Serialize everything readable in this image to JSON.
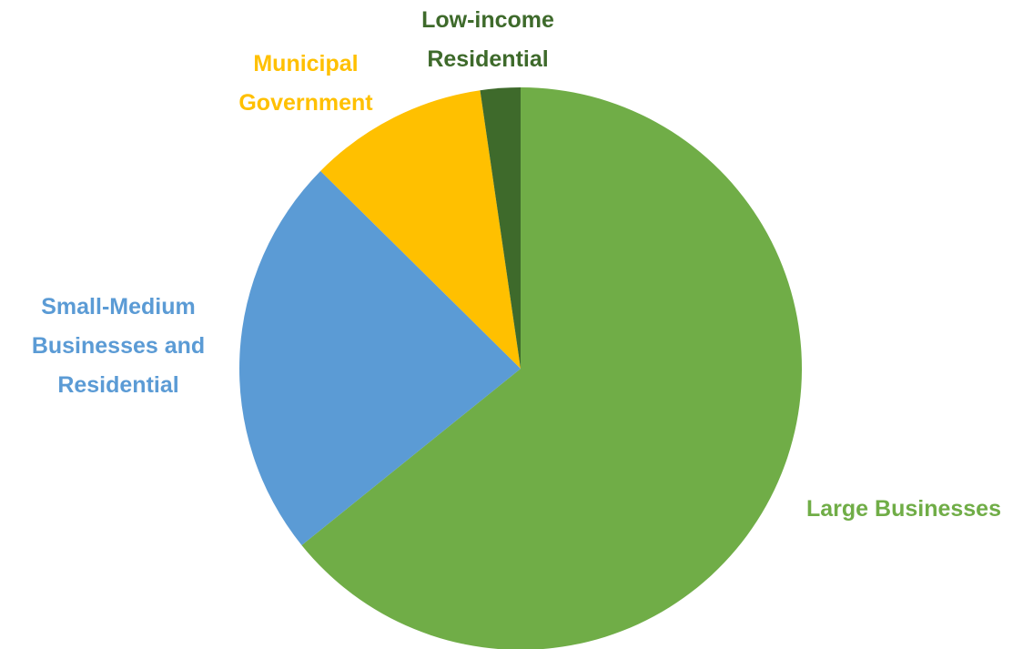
{
  "chart_data": {
    "type": "pie",
    "title": "",
    "start_angle_deg": 0,
    "direction": "clockwise",
    "slices": [
      {
        "name": "Large Businesses",
        "value": 64.2,
        "color": "#70AD47",
        "label_lines": [
          "Large Businesses"
        ]
      },
      {
        "name": "Small-Medium Businesses and Residential",
        "value": 23.2,
        "color": "#5B9BD5",
        "label_lines": [
          "Small-Medium",
          "Businesses and",
          "Residential"
        ]
      },
      {
        "name": "Municipal Government",
        "value": 10.3,
        "color": "#FFC000",
        "label_lines": [
          "Municipal",
          "Government"
        ]
      },
      {
        "name": "Low-income Residential",
        "value": 2.3,
        "color": "#3E6A2B",
        "label_lines": [
          "Low-income",
          "Residential"
        ]
      }
    ],
    "legend": "none",
    "data_labels": "category names outside slices"
  }
}
